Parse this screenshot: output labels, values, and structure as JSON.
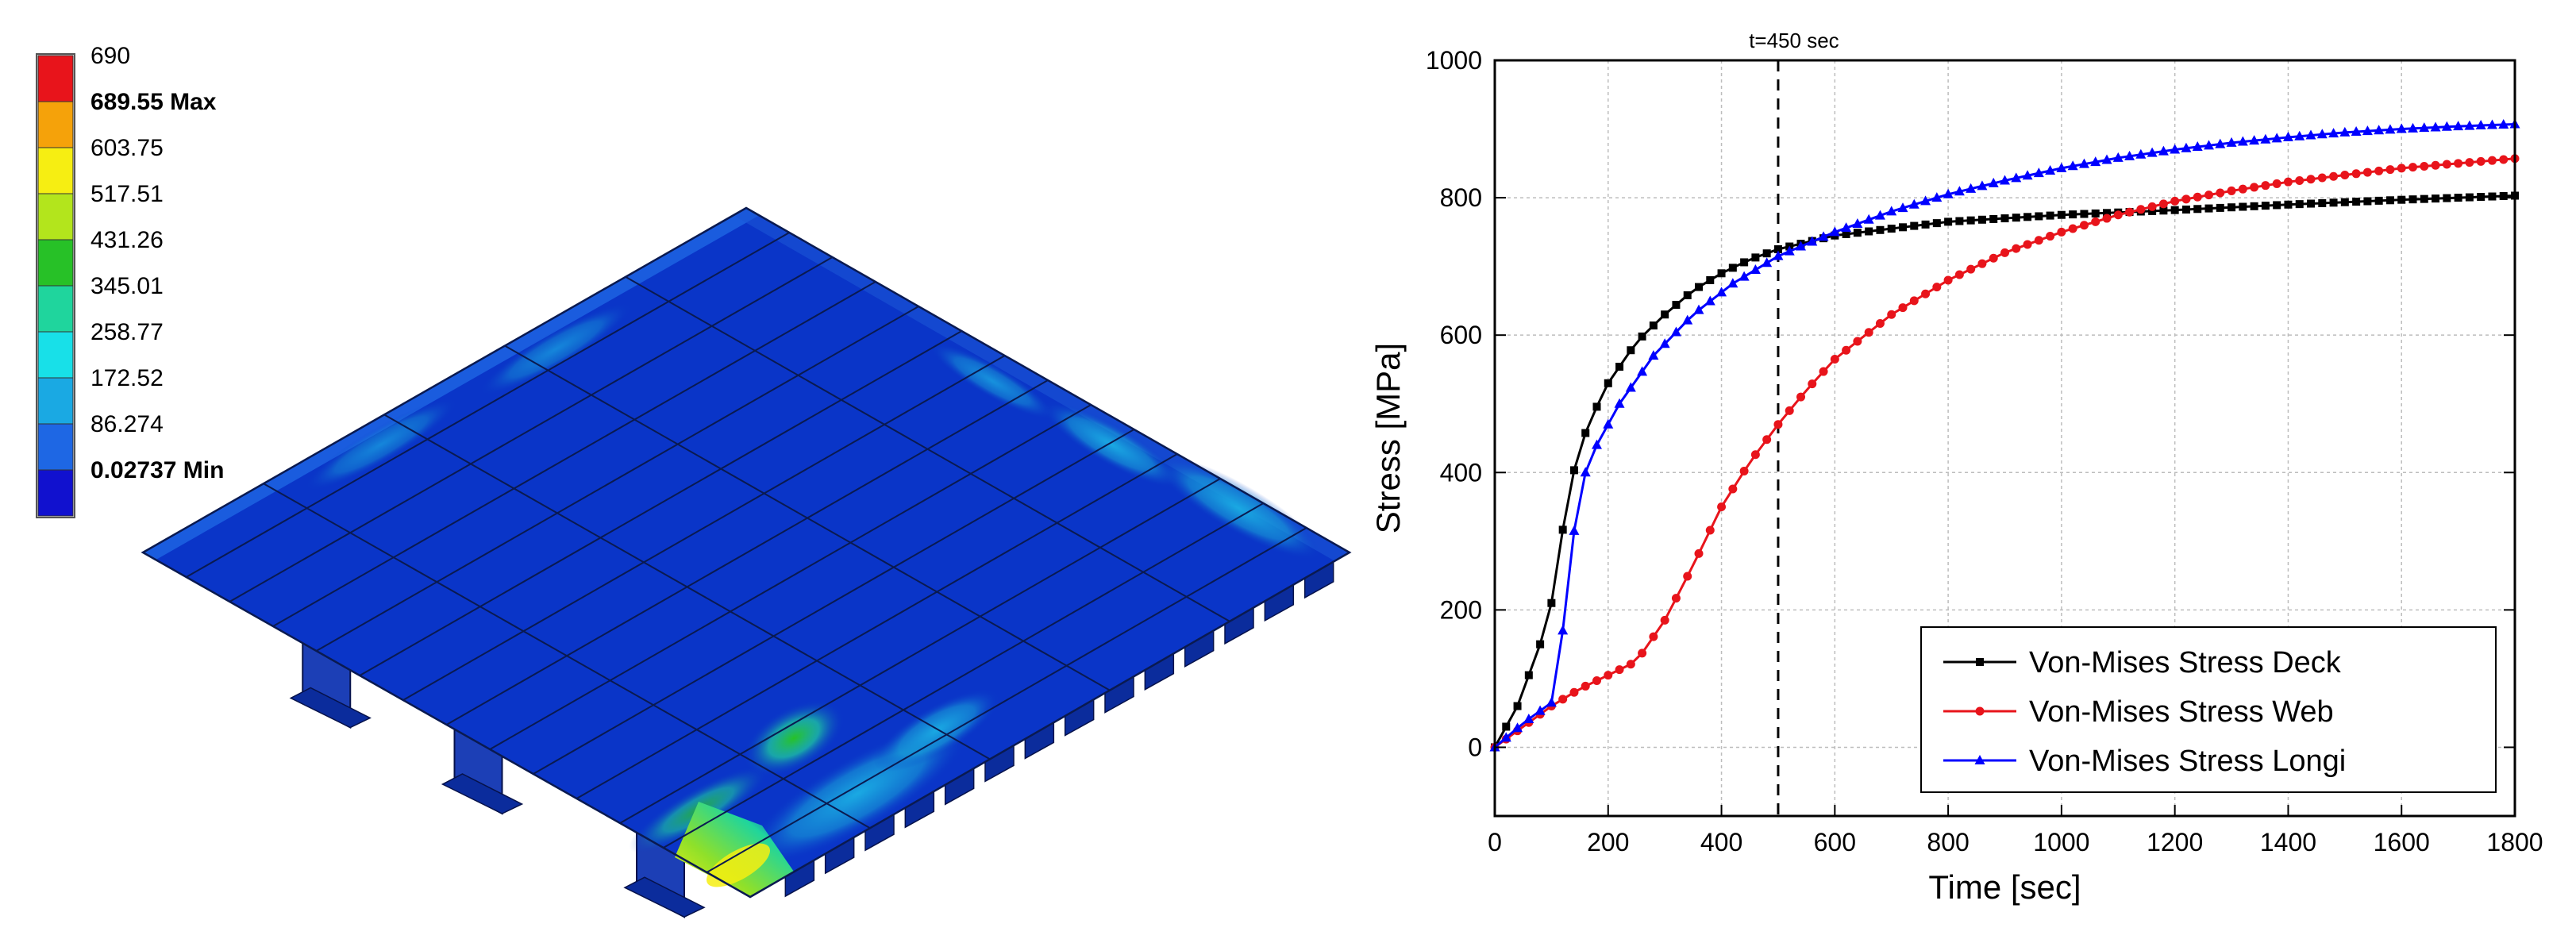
{
  "legend_scale": {
    "labels": [
      "690",
      "689.55 Max",
      "603.75",
      "517.51",
      "431.26",
      "345.01",
      "258.77",
      "172.52",
      "86.274",
      "0.02737 Min"
    ],
    "bold": [
      false,
      true,
      false,
      false,
      false,
      false,
      false,
      false,
      false,
      true
    ],
    "colors": [
      "#e8141b",
      "#f5a20a",
      "#f6ee12",
      "#b3e51c",
      "#27c127",
      "#1fd59d",
      "#18e0e8",
      "#1aa9e3",
      "#1e67e4",
      "#1111cf"
    ]
  },
  "model": {
    "plate_colors": {
      "base": "#0a35c8",
      "edge": "#0b2c9c",
      "flange": "#1c3fb6",
      "grid": "#0a1a50"
    },
    "stiffeners": 14
  },
  "chart_data": {
    "type": "line",
    "title": "",
    "xlabel": "Time [sec]",
    "ylabel": "Stress [MPa]",
    "xlim": [
      0,
      1800
    ],
    "ylim": [
      -100,
      1000
    ],
    "xticks": [
      0,
      200,
      400,
      600,
      800,
      1000,
      1200,
      1400,
      1600,
      1800
    ],
    "yticks": [
      0,
      200,
      400,
      600,
      800,
      1000
    ],
    "grid": true,
    "legend_position": "bottom-right",
    "annotation": {
      "text": "t=450 sec",
      "x": 500
    },
    "series": [
      {
        "name": "Von-Mises Stress Deck",
        "color": "#000000",
        "marker": "square",
        "x": [
          0,
          40,
          80,
          100,
          115,
          130,
          145,
          165,
          200,
          250,
          300,
          350,
          400,
          450,
          500,
          600,
          800,
          1000,
          1200,
          1400,
          1600,
          1800
        ],
        "y": [
          0,
          60,
          150,
          210,
          290,
          370,
          420,
          470,
          530,
          590,
          630,
          665,
          690,
          710,
          725,
          745,
          765,
          775,
          782,
          790,
          797,
          803
        ]
      },
      {
        "name": "Von-Mises Stress Web",
        "color": "#e8141b",
        "marker": "circle",
        "x": [
          0,
          50,
          100,
          150,
          200,
          250,
          300,
          350,
          400,
          450,
          500,
          550,
          600,
          700,
          800,
          900,
          1000,
          1100,
          1200,
          1300,
          1400,
          1600,
          1800
        ],
        "y": [
          0,
          30,
          60,
          85,
          105,
          125,
          185,
          265,
          350,
          415,
          470,
          520,
          565,
          630,
          680,
          720,
          750,
          775,
          795,
          810,
          823,
          843,
          857
        ]
      },
      {
        "name": "Von-Mises Stress Longi",
        "color": "#0000ff",
        "marker": "triangle",
        "x": [
          0,
          50,
          100,
          115,
          130,
          150,
          180,
          220,
          280,
          350,
          420,
          500,
          600,
          700,
          800,
          900,
          1000,
          1100,
          1200,
          1300,
          1400,
          1500,
          1600,
          1700,
          1800
        ],
        "y": [
          0,
          35,
          65,
          130,
          250,
          380,
          440,
          500,
          570,
          630,
          675,
          715,
          750,
          780,
          805,
          825,
          843,
          858,
          870,
          880,
          888,
          895,
          900,
          904,
          907
        ]
      }
    ]
  }
}
